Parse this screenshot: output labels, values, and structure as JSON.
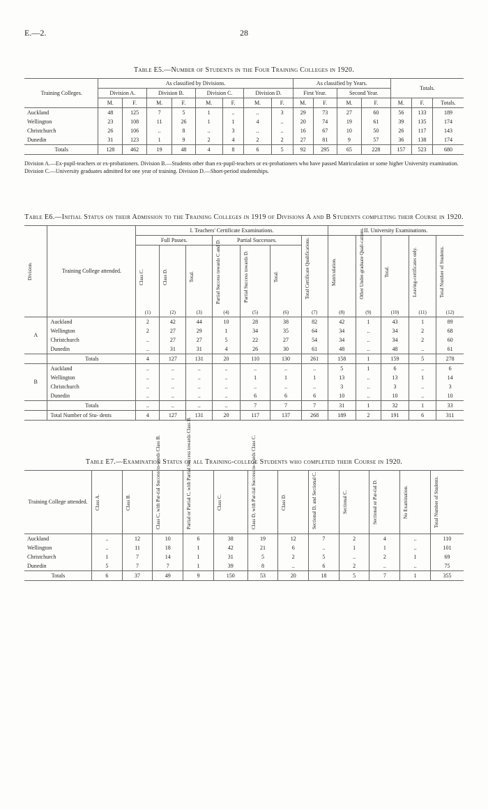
{
  "header": {
    "left": "E.—2.",
    "pageNum": "28"
  },
  "tableE5": {
    "caption": "Table E5.—Number of Students in the Four Training Colleges in 1920.",
    "colGroups": {
      "training": "Training Colleges.",
      "divHeader": "As classified by Divisions.",
      "yrHeader": "As classified by Years.",
      "totals": "Totals.",
      "divA": "Division A.",
      "divB": "Division B.",
      "divC": "Division C.",
      "divD": "Division D.",
      "firstYr": "First Year.",
      "secondYr": "Second Year.",
      "M": "M.",
      "F": "F.",
      "T": "Totals."
    },
    "rows": [
      {
        "label": "Auckland",
        "AM": "48",
        "AF": "125",
        "BM": "7",
        "BF": "5",
        "CM": "1",
        "CF": "..",
        "DM": "..",
        "DF": "3",
        "Y1M": "29",
        "Y1F": "73",
        "Y2M": "27",
        "Y2F": "60",
        "TM": "56",
        "TF": "133",
        "TT": "189"
      },
      {
        "label": "Wellington",
        "AM": "23",
        "AF": "108",
        "BM": "11",
        "BF": "26",
        "CM": "1",
        "CF": "1",
        "DM": "4",
        "DF": "..",
        "Y1M": "20",
        "Y1F": "74",
        "Y2M": "19",
        "Y2F": "61",
        "TM": "39",
        "TF": "135",
        "TT": "174"
      },
      {
        "label": "Christchurch",
        "AM": "26",
        "AF": "106",
        "BM": "..",
        "BF": "8",
        "CM": "..",
        "CF": "3",
        "DM": "..",
        "DF": "..",
        "Y1M": "16",
        "Y1F": "67",
        "Y2M": "10",
        "Y2F": "50",
        "TM": "26",
        "TF": "117",
        "TT": "143"
      },
      {
        "label": "Dunedin",
        "AM": "31",
        "AF": "123",
        "BM": "1",
        "BF": "9",
        "CM": "2",
        "CF": "4",
        "DM": "2",
        "DF": "2",
        "Y1M": "27",
        "Y1F": "81",
        "Y2M": "9",
        "Y2F": "57",
        "TM": "36",
        "TF": "138",
        "TT": "174"
      }
    ],
    "totals": {
      "label": "Totals",
      "AM": "128",
      "AF": "462",
      "BM": "19",
      "BF": "48",
      "CM": "4",
      "CF": "8",
      "DM": "6",
      "DF": "5",
      "Y1M": "92",
      "Y1F": "295",
      "Y2M": "65",
      "Y2F": "228",
      "TM": "157",
      "TF": "523",
      "TT": "680"
    },
    "footnote": "Division A.—Ex-pupil-teachers or ex-probationers.        Division B.—Students other than ex-pupil-teachers or ex-probationers who have passed Matriculation or some higher University examination.        Division C.—University graduates admitted for one year of training.        Division D.—Short-period studentships."
  },
  "tableE6": {
    "caption": "Table E6.—Initial Status on their Admission to the Training Colleges in 1919 of Divisions A and B Students completing their Course in 1920.",
    "headers": {
      "division": "Division.",
      "college": "Training College attended.",
      "sec1": "I. Teachers' Certificate Examinations.",
      "sec2": "II. University Examinations.",
      "fullPasses": "Full Passes.",
      "partialSuccesses": "Partial Successes.",
      "classC": "Class C.",
      "classD": "Class D.",
      "total": "Total.",
      "psc": "Partial Success towards C and D.",
      "psd": "Partial Success towards D.",
      "totalCert": "Total Certificate Qualifications.",
      "matric": "Matriculation.",
      "under": "Other Under-graduate Quali-cations.",
      "leaving": "Leaving-certificates only.",
      "totalStud": "Total Number of Students.",
      "n1": "(1)",
      "n2": "(2)",
      "n3": "(3)",
      "n4": "(4)",
      "n5": "(5)",
      "n6": "(6)",
      "n7": "(7)",
      "n8": "(8)",
      "n9": "(9)",
      "n10": "(10)",
      "n11": "(11)",
      "n12": "(12)"
    },
    "groupA": "A",
    "groupB": "B",
    "rowsA": [
      {
        "label": "Auckland",
        "c1": "2",
        "c2": "42",
        "c3": "44",
        "c4": "10",
        "c5": "28",
        "c6": "38",
        "c7": "82",
        "c8": "42",
        "c9": "1",
        "c10": "43",
        "c11": "1",
        "c12": "89"
      },
      {
        "label": "Wellington",
        "c1": "2",
        "c2": "27",
        "c3": "29",
        "c4": "1",
        "c5": "34",
        "c6": "35",
        "c7": "64",
        "c8": "34",
        "c9": "..",
        "c10": "34",
        "c11": "2",
        "c12": "68"
      },
      {
        "label": "Christchurch",
        "c1": "..",
        "c2": "27",
        "c3": "27",
        "c4": "5",
        "c5": "22",
        "c6": "27",
        "c7": "54",
        "c8": "34",
        "c9": "..",
        "c10": "34",
        "c11": "2",
        "c12": "60"
      },
      {
        "label": "Dunedin",
        "c1": "..",
        "c2": "31",
        "c3": "31",
        "c4": "4",
        "c5": "26",
        "c6": "30",
        "c7": "61",
        "c8": "48",
        "c9": "..",
        "c10": "48",
        "c11": "..",
        "c12": "61"
      }
    ],
    "totalsA": {
      "label": "Totals",
      "c1": "4",
      "c2": "127",
      "c3": "131",
      "c4": "20",
      "c5": "110",
      "c6": "130",
      "c7": "261",
      "c8": "158",
      "c9": "1",
      "c10": "159",
      "c11": "5",
      "c12": "278"
    },
    "rowsB": [
      {
        "label": "Auckland",
        "c1": "..",
        "c2": "..",
        "c3": "..",
        "c4": "..",
        "c5": "..",
        "c6": "..",
        "c7": "..",
        "c8": "5",
        "c9": "1",
        "c10": "6",
        "c11": "..",
        "c12": "6"
      },
      {
        "label": "Wellington",
        "c1": "..",
        "c2": "..",
        "c3": "..",
        "c4": "..",
        "c5": "1",
        "c6": "1",
        "c7": "1",
        "c8": "13",
        "c9": "..",
        "c10": "13",
        "c11": "1",
        "c12": "14"
      },
      {
        "label": "Christchurch",
        "c1": "..",
        "c2": "..",
        "c3": "..",
        "c4": "..",
        "c5": "..",
        "c6": "..",
        "c7": "..",
        "c8": "3",
        "c9": "..",
        "c10": "3",
        "c11": "..",
        "c12": "3"
      },
      {
        "label": "Dunedin",
        "c1": "..",
        "c2": "..",
        "c3": "..",
        "c4": "..",
        "c5": "6",
        "c6": "6",
        "c7": "6",
        "c8": "10",
        "c9": "..",
        "c10": "10",
        "c11": "..",
        "c12": "10"
      }
    ],
    "totalsB": {
      "label": "Totals",
      "c1": "..",
      "c2": "..",
      "c3": "..",
      "c4": "..",
      "c5": "7",
      "c6": "7",
      "c7": "7",
      "c8": "31",
      "c9": "1",
      "c10": "32",
      "c11": "1",
      "c12": "33"
    },
    "grand": {
      "label": "Total Number of Stu-\n  dents",
      "c1": "4",
      "c2": "127",
      "c3": "131",
      "c4": "20",
      "c5": "117",
      "c6": "137",
      "c7": "268",
      "c8": "189",
      "c9": "2",
      "c10": "191",
      "c11": "6",
      "c12": "311"
    }
  },
  "tableE7": {
    "caption": "Table E7.—Examination Status of all Training-college Students who completed their Course in 1920.",
    "headers": {
      "college": "Training College attended.",
      "A": "Class A.",
      "B": "Class B.",
      "CPar": "Class C, with Par-tial Success to-wards Class B.",
      "PorP": "Partial or Partial C, with Partial Success towards Class B.",
      "C": "Class C.",
      "DPar": "Class D, with Par-tial Success to-wards Class C.",
      "D": "Class D.",
      "SDC": "Sectional D, and Sectional C.",
      "SC": "Sectional C.",
      "SPD": "Sectional or Par-tial D.",
      "NoEx": "No Examination.",
      "Tot": "Total Number of Students."
    },
    "rows": [
      {
        "label": "Auckland",
        "A": "..",
        "B": "12",
        "CPar": "10",
        "PorP": "6",
        "C": "38",
        "DPar": "19",
        "D": "12",
        "SDC": "7",
        "SC": "2",
        "SPD": "4",
        "NoEx": "..",
        "Tot": "110"
      },
      {
        "label": "Wellington",
        "A": "..",
        "B": "11",
        "CPar": "18",
        "PorP": "1",
        "C": "42",
        "DPar": "21",
        "D": "6",
        "SDC": "..",
        "SC": "1",
        "SPD": "1",
        "NoEx": "..",
        "Tot": "101"
      },
      {
        "label": "Christchurch",
        "A": "1",
        "B": "7",
        "CPar": "14",
        "PorP": "1",
        "C": "31",
        "DPar": "5",
        "D": "2",
        "SDC": "5",
        "SC": "..",
        "SPD": "2",
        "NoEx": "1",
        "Tot": "69"
      },
      {
        "label": "Dunedin",
        "A": "5",
        "B": "7",
        "CPar": "7",
        "PorP": "1",
        "C": "39",
        "DPar": "8",
        "D": "..",
        "SDC": "6",
        "SC": "2",
        "SPD": "..",
        "NoEx": "..",
        "Tot": "75"
      }
    ],
    "totals": {
      "label": "Totals",
      "A": "6",
      "B": "37",
      "CPar": "49",
      "PorP": "9",
      "C": "150",
      "DPar": "53",
      "D": "20",
      "SDC": "18",
      "SC": "5",
      "SPD": "7",
      "NoEx": "1",
      "Tot": "355"
    }
  }
}
